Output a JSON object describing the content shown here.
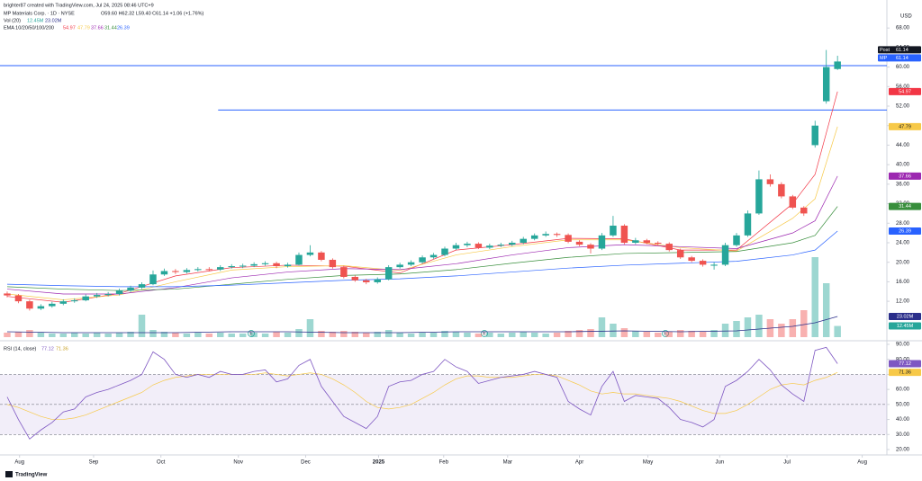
{
  "header": {
    "creator": "brighter87 created with TradingView.com, Jul 24, 2025 08:46 UTC+9",
    "symbol": "MP Materials Corp. · 1D · NYSE",
    "ohlc": "O59.60 H62.32 L59.40 C61.14 +1.06 (+1.76%)",
    "vol_title": "Vol (20)",
    "ema_title": "EMA 10/20/50/100/200",
    "rsi_title": "RSI (14, close)",
    "currency": "USD",
    "post_label": "Post",
    "symbol_label": "MP",
    "earnings_marker": "E",
    "footer": "TradingView"
  },
  "chart_data": {
    "type": "candlestick",
    "xlim": [
      -0.64,
      78.4
    ],
    "xticks": [
      {
        "value": 1.1,
        "label": "Aug"
      },
      {
        "value": 7.7,
        "label": "Sep"
      },
      {
        "value": 13.7,
        "label": "Oct"
      },
      {
        "value": 20.6,
        "label": "Nov"
      },
      {
        "value": 26.6,
        "label": "Dec"
      },
      {
        "value": 33.1,
        "label": "2025"
      },
      {
        "value": 38.9,
        "label": "Feb"
      },
      {
        "value": 44.6,
        "label": "Mar"
      },
      {
        "value": 51,
        "label": "Apr"
      },
      {
        "value": 57.1,
        "label": "May"
      },
      {
        "value": 63.5,
        "label": "Jun"
      },
      {
        "value": 69.5,
        "label": "Jul"
      },
      {
        "value": 76.2,
        "label": "Aug"
      }
    ],
    "ylim": [
      4.1,
      71.9
    ],
    "yticks": [
      {
        "value": 68,
        "label": "68.00"
      },
      {
        "value": 64,
        "label": "64.00"
      },
      {
        "value": 60,
        "label": "60.00"
      },
      {
        "value": 56,
        "label": "56.00"
      },
      {
        "value": 52,
        "label": "52.00"
      },
      {
        "value": 48,
        "label": "48.00"
      },
      {
        "value": 44,
        "label": "44.00"
      },
      {
        "value": 40,
        "label": "40.00"
      },
      {
        "value": 36,
        "label": "36.00"
      },
      {
        "value": 32,
        "label": "32.00"
      },
      {
        "value": 28,
        "label": "28.00"
      },
      {
        "value": 24,
        "label": "24.00"
      },
      {
        "value": 20,
        "label": "20.00"
      },
      {
        "value": 16,
        "label": "16.00"
      },
      {
        "value": 12,
        "label": "12.00"
      }
    ],
    "up_color": "#26a69a",
    "down_color": "#ef5350",
    "candles": [
      [
        13.6,
        14.0,
        12.8,
        13.2
      ],
      [
        13.2,
        13.5,
        11.6,
        12
      ],
      [
        12,
        12.3,
        10.1,
        10.5
      ],
      [
        10.5,
        11.4,
        10.2,
        11
      ],
      [
        11,
        11.9,
        10.7,
        11.5
      ],
      [
        11.5,
        12.4,
        11.2,
        12
      ],
      [
        12,
        12.6,
        11.7,
        12.2
      ],
      [
        12.2,
        13.4,
        12,
        13
      ],
      [
        13,
        13.7,
        12.7,
        13.3
      ],
      [
        13.3,
        13.9,
        13,
        13.5
      ],
      [
        13.5,
        14.6,
        13.2,
        14.2
      ],
      [
        14.2,
        15.2,
        13.9,
        14.8
      ],
      [
        14.8,
        15.9,
        14.5,
        15.5
      ],
      [
        15.5,
        18.3,
        15.3,
        17.5
      ],
      [
        17.5,
        18.7,
        17.2,
        18.2
      ],
      [
        18.2,
        18.6,
        17.6,
        18
      ],
      [
        18,
        18.8,
        17.7,
        18.4
      ],
      [
        18.4,
        19,
        18.1,
        18.6
      ],
      [
        18.6,
        19,
        18.1,
        18.5
      ],
      [
        18.5,
        19.4,
        18.2,
        19
      ],
      [
        19,
        19.6,
        18.7,
        19.2
      ],
      [
        19.2,
        19.7,
        18.8,
        19.3
      ],
      [
        19.3,
        20,
        19,
        19.6
      ],
      [
        19.6,
        20.2,
        19.3,
        19.8
      ],
      [
        19.8,
        20.1,
        18.8,
        19.2
      ],
      [
        19.2,
        19.9,
        18.9,
        19.5
      ],
      [
        19.5,
        22,
        19.3,
        21.5
      ],
      [
        21.5,
        23.5,
        21.2,
        22
      ],
      [
        22,
        22.3,
        20.2,
        20.5
      ],
      [
        20.5,
        20.8,
        18.7,
        19
      ],
      [
        19,
        19.3,
        16.7,
        17
      ],
      [
        17,
        17.3,
        16,
        16.3
      ],
      [
        16.3,
        16.6,
        15.5,
        15.9
      ],
      [
        15.9,
        16.9,
        15.6,
        16.5
      ],
      [
        16.5,
        19.4,
        16.3,
        19
      ],
      [
        19,
        19.9,
        18.7,
        19.5
      ],
      [
        19.5,
        20.4,
        19.2,
        20
      ],
      [
        20,
        21.4,
        19.7,
        21
      ],
      [
        21,
        21.9,
        20.7,
        21.5
      ],
      [
        21.5,
        23.2,
        21.2,
        22.8
      ],
      [
        22.8,
        24,
        22.5,
        23.5
      ],
      [
        23.5,
        24.2,
        23.1,
        23.8
      ],
      [
        23.8,
        24.1,
        22.7,
        23
      ],
      [
        23,
        23.8,
        22.7,
        23.4
      ],
      [
        23.4,
        24,
        23.1,
        23.6
      ],
      [
        23.6,
        24.4,
        23.3,
        24
      ],
      [
        24,
        25.2,
        23.7,
        24.8
      ],
      [
        24.8,
        25.9,
        24.5,
        25.5
      ],
      [
        25.5,
        26.3,
        25.2,
        25.8
      ],
      [
        25.8,
        26.1,
        25.2,
        25.6
      ],
      [
        25.6,
        25.9,
        23.9,
        24.2
      ],
      [
        24.2,
        24.5,
        23.3,
        23.6
      ],
      [
        23.6,
        23.9,
        21.8,
        22.8
      ],
      [
        22.8,
        26,
        22.5,
        25.5
      ],
      [
        25.5,
        29.5,
        25.2,
        27.5
      ],
      [
        27.5,
        27.8,
        23.7,
        24
      ],
      [
        24,
        25,
        23.7,
        24.5
      ],
      [
        24.5,
        24.8,
        23.7,
        24
      ],
      [
        24,
        24.3,
        23.5,
        23.8
      ],
      [
        23.8,
        24.1,
        22.2,
        22.5
      ],
      [
        22.5,
        22.8,
        20.7,
        21
      ],
      [
        21,
        21.3,
        20,
        20.3
      ],
      [
        20.3,
        20.6,
        19.1,
        19.5
      ],
      [
        19.3,
        20,
        18.5,
        19.5
      ],
      [
        19.5,
        24,
        19.2,
        23.5
      ],
      [
        23.5,
        26,
        23.2,
        25.5
      ],
      [
        25.5,
        30.6,
        25.2,
        30
      ],
      [
        30,
        38.8,
        29.7,
        37
      ],
      [
        37,
        38,
        35.5,
        36
      ],
      [
        36,
        36.4,
        33.1,
        33.5
      ],
      [
        33.5,
        33.8,
        30.9,
        31.2
      ],
      [
        31.2,
        31.5,
        29.5,
        30
      ],
      [
        44,
        49,
        43.5,
        48
      ],
      [
        53,
        63.5,
        52.5,
        60
      ],
      [
        59.6,
        62.32,
        59.4,
        61.14
      ]
    ],
    "levels": [
      {
        "value": 60.3,
        "color": "#2962ff"
      },
      {
        "value": 51.2,
        "from": 18.8,
        "color": "#2962ff"
      }
    ],
    "ema_x": [
      0,
      5,
      10,
      15,
      20,
      25,
      30,
      35,
      40,
      45,
      50,
      55,
      60,
      65,
      70,
      72,
      74
    ],
    "emas": [
      {
        "color": "#f23645",
        "values": [
          13,
          11.8,
          13.6,
          17.2,
          18.9,
          19.4,
          19.2,
          17.8,
          22.5,
          23.6,
          24.9,
          24.8,
          22.5,
          22.5,
          32,
          38,
          54.97
        ]
      },
      {
        "color": "#f7c948",
        "values": [
          13.5,
          12.3,
          13.3,
          16,
          18.4,
          19.1,
          19.3,
          18.3,
          21.5,
          23.2,
          24.6,
          24.6,
          23,
          22.3,
          29,
          33,
          47.79
        ]
      },
      {
        "color": "#9c27b0",
        "values": [
          14.5,
          13.5,
          13.5,
          14.8,
          16.8,
          18,
          18.7,
          18.5,
          19.7,
          21.5,
          23,
          23.6,
          23.2,
          22.8,
          26,
          28.5,
          37.66
        ]
      },
      {
        "color": "#388e3c",
        "values": [
          15,
          14.5,
          14.2,
          14.5,
          15.5,
          16.5,
          17.3,
          17.6,
          18.5,
          19.8,
          21,
          21.8,
          22,
          22.2,
          24,
          25.5,
          31.44
        ]
      },
      {
        "color": "#2962ff",
        "values": [
          15.5,
          15.2,
          15,
          15,
          15.3,
          15.8,
          16.3,
          16.6,
          17.2,
          18,
          18.8,
          19.4,
          19.8,
          20.2,
          21.5,
          22.5,
          26.39
        ]
      }
    ],
    "volume_ylim": [
      0,
      100
    ],
    "volume": [
      5,
      6,
      8,
      5,
      4,
      4,
      5,
      4,
      5,
      4,
      5,
      6,
      25,
      8,
      6,
      5,
      4,
      5,
      4,
      5,
      4,
      4,
      5,
      4,
      6,
      5,
      9,
      20,
      7,
      6,
      7,
      6,
      5,
      6,
      8,
      5,
      4,
      5,
      5,
      7,
      6,
      5,
      4,
      5,
      4,
      5,
      6,
      5,
      4,
      5,
      7,
      8,
      9,
      22,
      15,
      10,
      7,
      6,
      5,
      6,
      8,
      7,
      6,
      8,
      15,
      18,
      22,
      25,
      20,
      15,
      20,
      30,
      89,
      60,
      12.45
    ],
    "volume_last_label": "12.45M",
    "volume_ma": {
      "color": "#2a2e8a",
      "values": [
        6,
        5,
        5,
        5,
        6,
        6,
        5,
        5,
        6,
        6,
        6,
        7,
        6,
        7,
        12,
        16,
        23.02
      ],
      "last_label": "23.02M"
    },
    "rsi_ylim": [
      17,
      91.8
    ],
    "rsi_yticks": [
      {
        "value": 90,
        "label": "90.00"
      },
      {
        "value": 80,
        "label": "80.00"
      },
      {
        "value": 70,
        "label": "70.00"
      },
      {
        "value": 60,
        "label": "60.00"
      },
      {
        "value": 50,
        "label": "50.00"
      },
      {
        "value": 40,
        "label": "40.00"
      },
      {
        "value": 30,
        "label": "30.00"
      },
      {
        "value": 20,
        "label": "20.00"
      }
    ],
    "rsi_levels": [
      70,
      50,
      30
    ],
    "rsi": {
      "color": "#7e57c2",
      "values": [
        55,
        40,
        27,
        33,
        38,
        45,
        47,
        55,
        58,
        60,
        63,
        66,
        70,
        85,
        80,
        70,
        68,
        70,
        68,
        72,
        70,
        70,
        72,
        73,
        65,
        67,
        76,
        80,
        62,
        52,
        42,
        38,
        34,
        42,
        62,
        65,
        66,
        70,
        72,
        80,
        75,
        72,
        64,
        66,
        68,
        69,
        70,
        72,
        70,
        68,
        52,
        47,
        43,
        62,
        72,
        52,
        56,
        55,
        54,
        48,
        40,
        38,
        35,
        40,
        62,
        66,
        72,
        80,
        73,
        63,
        57,
        52,
        86,
        88,
        77.12
      ]
    },
    "rsi_ma": {
      "color": "#f7c948",
      "values": [
        50,
        48,
        45,
        42,
        40,
        40,
        41,
        43,
        46,
        49,
        52,
        55,
        58,
        63,
        66,
        68,
        69,
        70,
        70,
        70,
        70,
        70,
        70,
        71,
        70,
        69,
        70,
        71,
        70,
        67,
        63,
        58,
        52,
        48,
        47,
        48,
        50,
        54,
        58,
        63,
        67,
        69,
        69,
        68,
        68,
        68,
        69,
        70,
        70,
        69,
        66,
        63,
        59,
        57,
        58,
        57,
        57,
        56,
        55,
        54,
        52,
        49,
        46,
        44,
        44,
        46,
        50,
        55,
        60,
        63,
        64,
        63,
        66,
        68,
        71.36
      ]
    }
  }
}
